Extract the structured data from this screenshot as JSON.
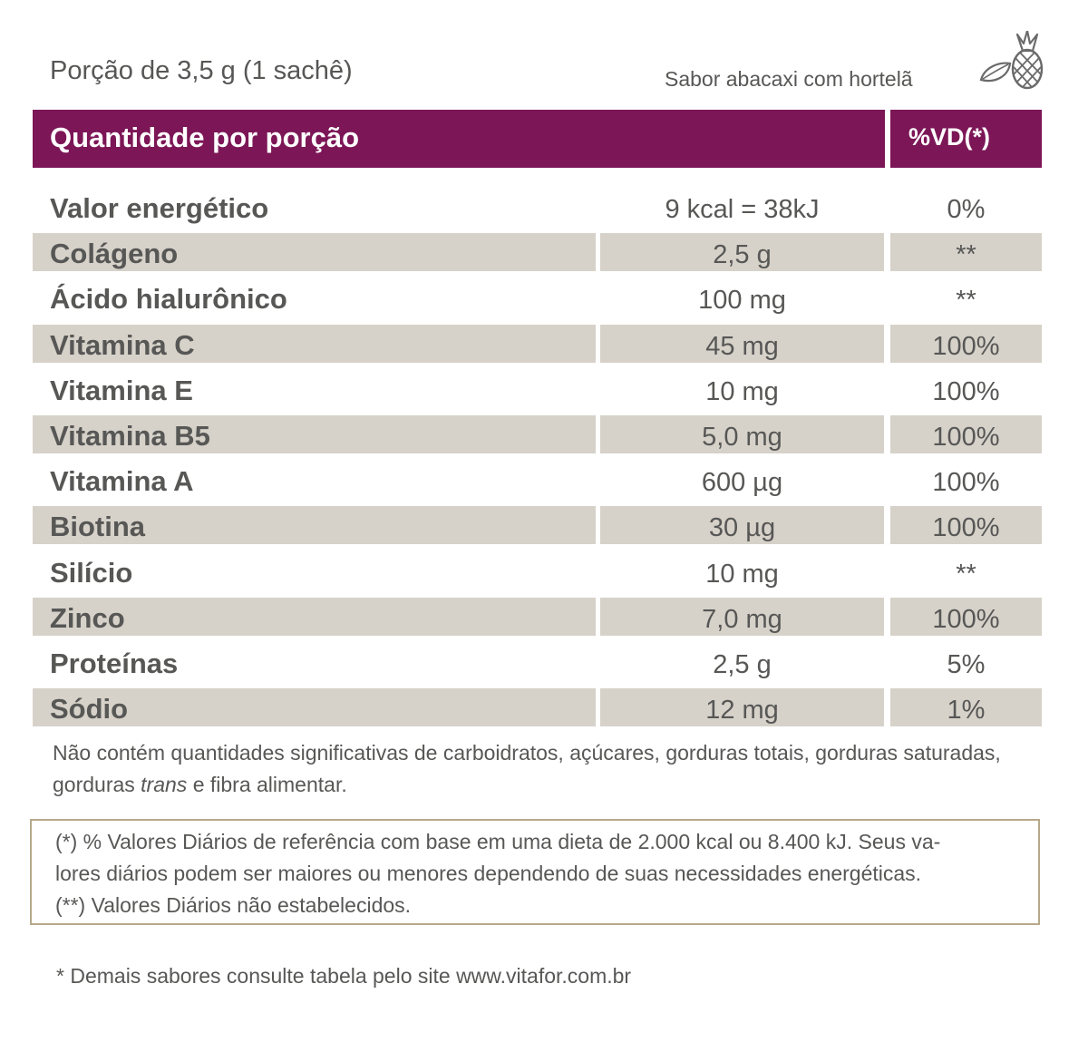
{
  "portion": "Porção de 3,5 g (1 sachê)",
  "flavor": "Sabor abacaxi com hortelã",
  "icon": "pineapple-icon",
  "header": {
    "quantity": "Quantidade por porção",
    "vd": "%VD(*)"
  },
  "colors": {
    "header_bg": "#7c1657",
    "shade": "#d6d2c9",
    "text": "#575756",
    "box_border": "#b6a88a"
  },
  "rows": [
    {
      "name": "Valor energético",
      "amount": "9 kcal = 38kJ",
      "vd": "0%"
    },
    {
      "name": "Colágeno",
      "amount": "2,5 g",
      "vd": "**"
    },
    {
      "name": "Ácido hialurônico",
      "amount": "100 mg",
      "vd": "**"
    },
    {
      "name": "Vitamina C",
      "amount": "45 mg",
      "vd": "100%"
    },
    {
      "name": "Vitamina E",
      "amount": "10 mg",
      "vd": "100%"
    },
    {
      "name": "Vitamina B5",
      "amount": "5,0 mg",
      "vd": "100%"
    },
    {
      "name": "Vitamina A",
      "amount": "600 µg",
      "vd": "100%"
    },
    {
      "name": "Biotina",
      "amount": "30 µg",
      "vd": "100%"
    },
    {
      "name": "Silício",
      "amount": "10 mg",
      "vd": "**"
    },
    {
      "name": "Zinco",
      "amount": "7,0 mg",
      "vd": "100%"
    },
    {
      "name": "Proteínas",
      "amount": "2,5 g",
      "vd": "5%"
    },
    {
      "name": "Sódio",
      "amount": "12 mg",
      "vd": "1%"
    }
  ],
  "note": {
    "part1": "Não contém quantidades significativas de carboidratos, açúcares, gorduras totais, gorduras saturadas, gorduras ",
    "italic": "trans",
    "part2": " e fibra alimentar."
  },
  "box": {
    "line1": "(*) % Valores Diários de referência com base em uma dieta de 2.000 kcal ou 8.400 kJ. Seus va-",
    "line2": "lores diários podem ser maiores ou menores dependendo de suas necessidades energéticas.",
    "line3": "(**) Valores Diários não estabelecidos."
  },
  "footer": "* Demais sabores consulte tabela pelo site www.vitafor.com.br"
}
